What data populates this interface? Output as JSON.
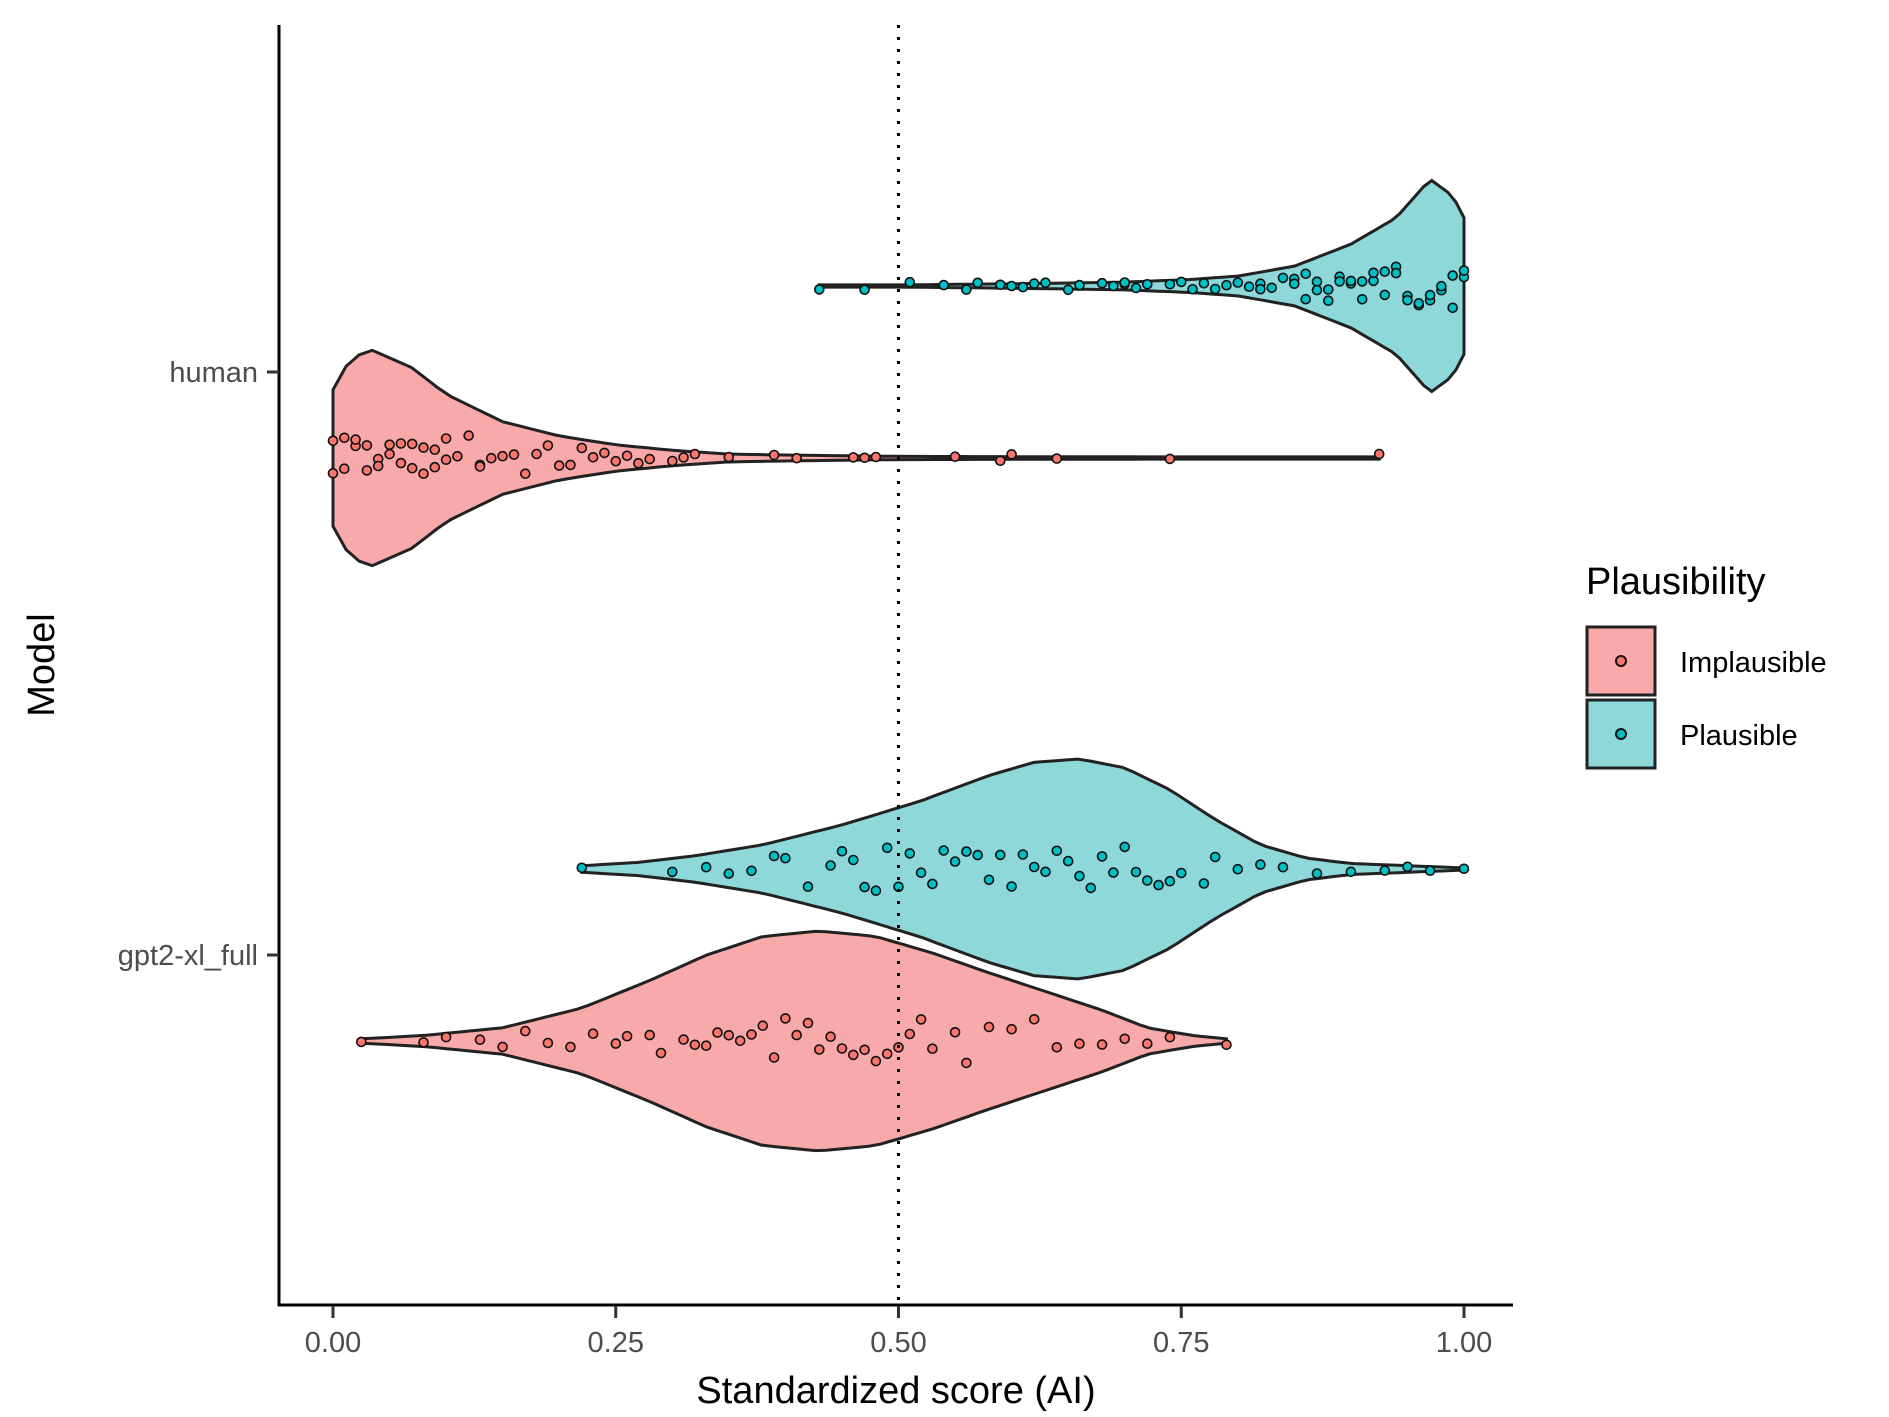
{
  "chart_data": {
    "type": "violin",
    "orientation": "horizontal",
    "xlabel": "Standardized score (AI)",
    "ylabel": "Model",
    "xlim": [
      -0.05,
      1.05
    ],
    "x_ticks": [
      "0.00",
      "0.25",
      "0.50",
      "0.75",
      "1.00"
    ],
    "x_tick_values": [
      0,
      0.25,
      0.5,
      0.75,
      1.0
    ],
    "categories": [
      "human",
      "gpt2-xl_full"
    ],
    "reference_line": {
      "x": 0.5,
      "style": "dotted"
    },
    "grid": false,
    "legend": {
      "title": "Plausibility",
      "position": "right",
      "entries": [
        {
          "name": "Implausible",
          "color": "#F8A9A9"
        },
        {
          "name": "Plausible",
          "color": "#8ED8DA"
        }
      ]
    },
    "colors": {
      "Implausible": "#F8A9A9",
      "Plausible": "#8ED8DA",
      "Implausible_point": "#F8766D",
      "Plausible_point": "#00BFC4",
      "outline": "#222222"
    },
    "series": [
      {
        "name": "Plausible",
        "category": "human",
        "range": [
          0.43,
          1.0
        ],
        "density": [
          [
            0.43,
            0.01
          ],
          [
            0.5,
            0.01
          ],
          [
            0.6,
            0.02
          ],
          [
            0.7,
            0.035
          ],
          [
            0.76,
            0.06
          ],
          [
            0.8,
            0.09
          ],
          [
            0.85,
            0.18
          ],
          [
            0.9,
            0.38
          ],
          [
            0.94,
            0.62
          ],
          [
            0.97,
            0.97
          ],
          [
            0.99,
            0.82
          ],
          [
            1.0,
            0.62
          ]
        ],
        "points": [
          0.43,
          0.47,
          0.51,
          0.54,
          0.56,
          0.57,
          0.59,
          0.6,
          0.61,
          0.62,
          0.63,
          0.65,
          0.66,
          0.68,
          0.69,
          0.7,
          0.7,
          0.71,
          0.72,
          0.74,
          0.75,
          0.76,
          0.77,
          0.78,
          0.79,
          0.8,
          0.81,
          0.82,
          0.82,
          0.83,
          0.84,
          0.85,
          0.85,
          0.86,
          0.86,
          0.87,
          0.87,
          0.88,
          0.88,
          0.89,
          0.89,
          0.9,
          0.9,
          0.91,
          0.91,
          0.92,
          0.92,
          0.93,
          0.93,
          0.94,
          0.94,
          0.95,
          0.95,
          0.96,
          0.96,
          0.97,
          0.97,
          0.98,
          0.98,
          0.99,
          0.99,
          1.0,
          1.0
        ]
      },
      {
        "name": "Implausible",
        "category": "human",
        "range": [
          0.0,
          0.925
        ],
        "density": [
          [
            0.0,
            0.62
          ],
          [
            0.01,
            0.82
          ],
          [
            0.03,
            1.0
          ],
          [
            0.07,
            0.82
          ],
          [
            0.1,
            0.58
          ],
          [
            0.15,
            0.33
          ],
          [
            0.2,
            0.2
          ],
          [
            0.25,
            0.12
          ],
          [
            0.3,
            0.07
          ],
          [
            0.35,
            0.035
          ],
          [
            0.45,
            0.02
          ],
          [
            0.5,
            0.015
          ],
          [
            0.6,
            0.012
          ],
          [
            0.75,
            0.01
          ],
          [
            0.925,
            0.01
          ]
        ],
        "points": [
          0.0,
          0.0,
          0.01,
          0.01,
          0.02,
          0.02,
          0.03,
          0.03,
          0.04,
          0.04,
          0.05,
          0.05,
          0.06,
          0.06,
          0.07,
          0.07,
          0.08,
          0.08,
          0.09,
          0.09,
          0.1,
          0.1,
          0.11,
          0.12,
          0.13,
          0.13,
          0.14,
          0.15,
          0.16,
          0.17,
          0.18,
          0.19,
          0.2,
          0.21,
          0.22,
          0.23,
          0.24,
          0.25,
          0.26,
          0.27,
          0.28,
          0.3,
          0.31,
          0.32,
          0.35,
          0.39,
          0.41,
          0.46,
          0.47,
          0.48,
          0.55,
          0.59,
          0.6,
          0.64,
          0.74,
          0.925
        ]
      },
      {
        "name": "Plausible",
        "category": "gpt2-xl_full",
        "range": [
          0.22,
          1.0
        ],
        "density": [
          [
            0.22,
            0.03
          ],
          [
            0.27,
            0.06
          ],
          [
            0.32,
            0.12
          ],
          [
            0.38,
            0.22
          ],
          [
            0.45,
            0.4
          ],
          [
            0.52,
            0.62
          ],
          [
            0.58,
            0.85
          ],
          [
            0.62,
            0.97
          ],
          [
            0.66,
            1.0
          ],
          [
            0.7,
            0.92
          ],
          [
            0.74,
            0.72
          ],
          [
            0.78,
            0.45
          ],
          [
            0.82,
            0.22
          ],
          [
            0.86,
            0.1
          ],
          [
            0.9,
            0.05
          ],
          [
            0.95,
            0.03
          ],
          [
            1.0,
            0.01
          ]
        ],
        "points": [
          0.22,
          0.3,
          0.33,
          0.35,
          0.37,
          0.39,
          0.4,
          0.42,
          0.44,
          0.45,
          0.46,
          0.47,
          0.48,
          0.49,
          0.5,
          0.51,
          0.52,
          0.53,
          0.54,
          0.55,
          0.56,
          0.57,
          0.58,
          0.59,
          0.6,
          0.61,
          0.62,
          0.63,
          0.64,
          0.65,
          0.66,
          0.67,
          0.68,
          0.69,
          0.7,
          0.71,
          0.72,
          0.73,
          0.74,
          0.75,
          0.77,
          0.78,
          0.8,
          0.82,
          0.84,
          0.87,
          0.9,
          0.93,
          0.95,
          0.97,
          1.0
        ]
      },
      {
        "name": "Implausible",
        "category": "gpt2-xl_full",
        "range": [
          0.025,
          0.79
        ],
        "density": [
          [
            0.025,
            0.02
          ],
          [
            0.08,
            0.05
          ],
          [
            0.15,
            0.12
          ],
          [
            0.22,
            0.3
          ],
          [
            0.28,
            0.55
          ],
          [
            0.33,
            0.78
          ],
          [
            0.38,
            0.95
          ],
          [
            0.43,
            1.0
          ],
          [
            0.48,
            0.95
          ],
          [
            0.53,
            0.8
          ],
          [
            0.58,
            0.62
          ],
          [
            0.63,
            0.45
          ],
          [
            0.68,
            0.28
          ],
          [
            0.72,
            0.12
          ],
          [
            0.76,
            0.05
          ],
          [
            0.79,
            0.02
          ]
        ],
        "points": [
          0.025,
          0.08,
          0.1,
          0.13,
          0.15,
          0.17,
          0.19,
          0.21,
          0.23,
          0.25,
          0.26,
          0.28,
          0.29,
          0.31,
          0.32,
          0.33,
          0.34,
          0.35,
          0.36,
          0.37,
          0.38,
          0.39,
          0.4,
          0.41,
          0.42,
          0.43,
          0.44,
          0.45,
          0.46,
          0.47,
          0.48,
          0.49,
          0.5,
          0.51,
          0.52,
          0.53,
          0.55,
          0.56,
          0.58,
          0.6,
          0.62,
          0.64,
          0.66,
          0.68,
          0.7,
          0.72,
          0.74,
          0.79
        ]
      }
    ]
  }
}
